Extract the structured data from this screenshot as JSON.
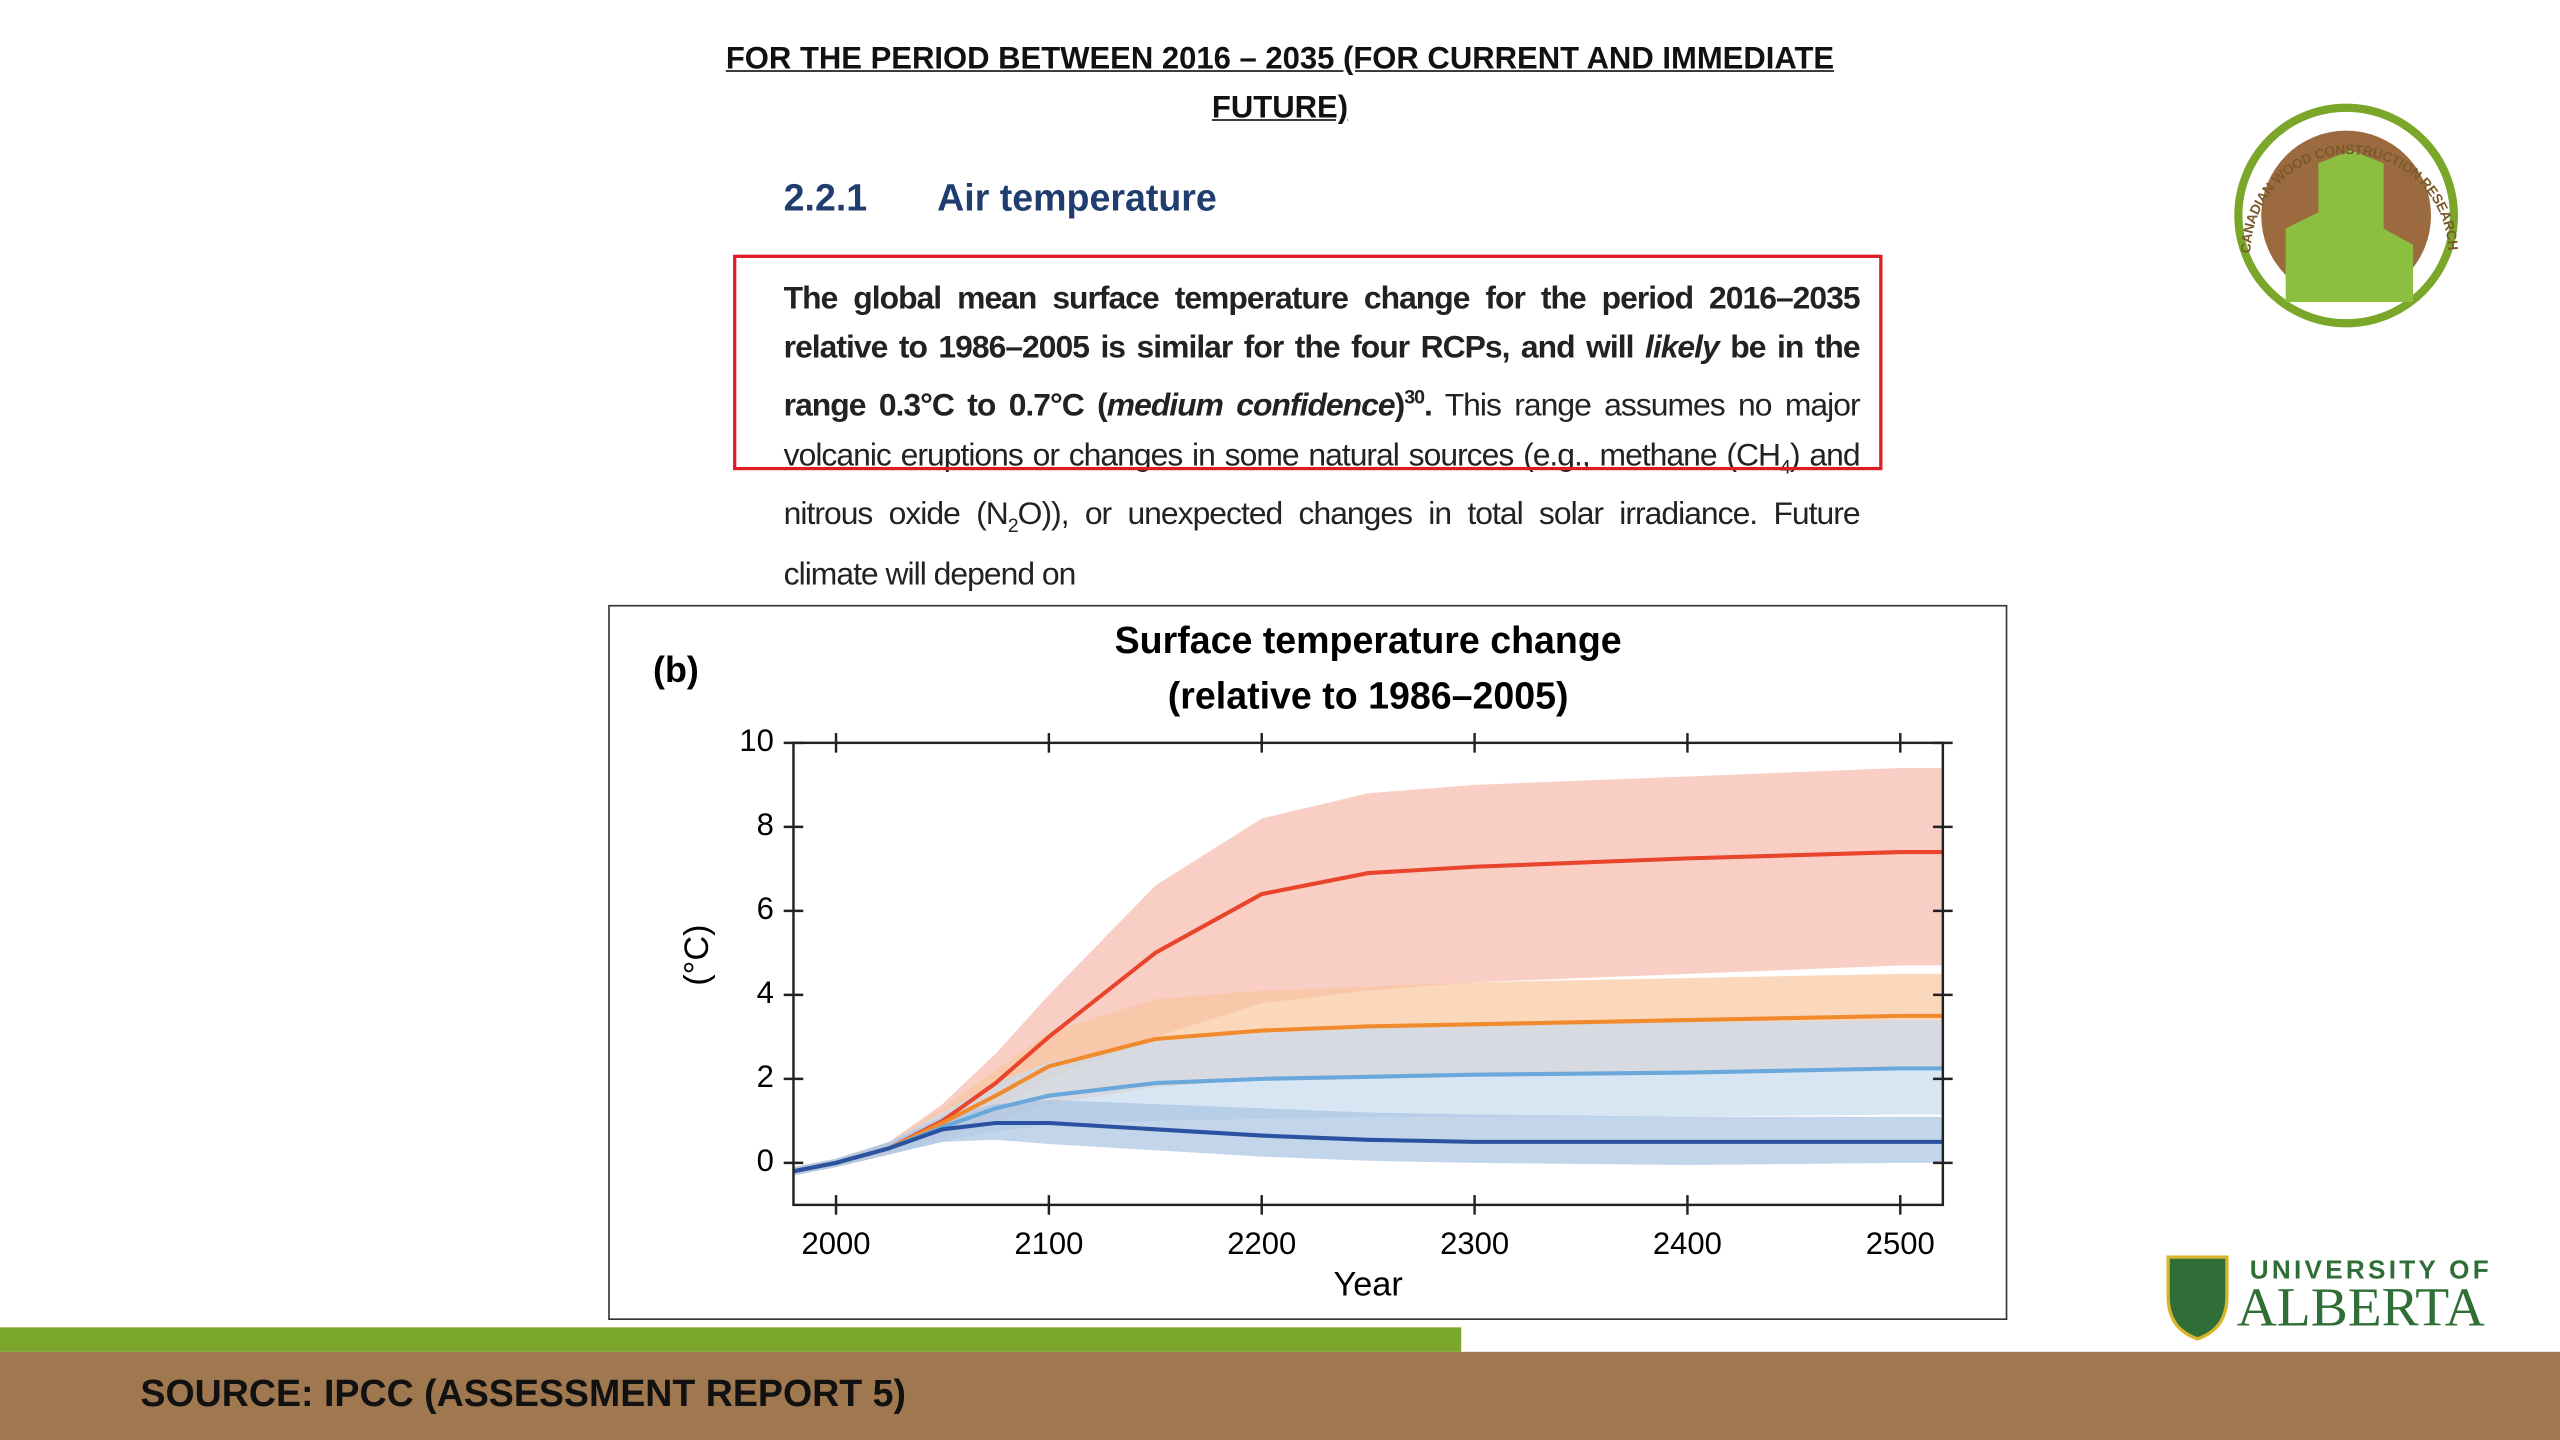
{
  "header": {
    "title_line1": "FOR THE PERIOD BETWEEN 2016 – 2035 (FOR CURRENT AND IMMEDIATE",
    "title_line2": "FUTURE)"
  },
  "section": {
    "number": "2.2.1",
    "title": "Air temperature"
  },
  "paragraph": [
    "The global mean surface temperature change for the period 2016–2035 relative to 1986–2005 is similar for the four RCPs, and will ",
    "likely",
    " be in the range 0.3°C to 0.7°C (",
    "medium confidence",
    ")",
    "30",
    ".",
    " This range assumes no major volcanic eruptions or changes in some natural sources (e.g., methane (CH",
    "4",
    ") and nitrous oxide (N",
    "2",
    "O)), or unexpected changes in total solar irradiance. Future climate will depend on"
  ],
  "logo_top": "CANADIAN WOOD CONSTRUCTION RESEARCH NETWORK",
  "logo_bottom": {
    "line1": "UNIVERSITY OF",
    "line2": "ALBERTA"
  },
  "footer": "SOURCE: IPCC (ASSESSMENT REPORT 5)",
  "chart_data": {
    "type": "line",
    "panel_label": "(b)",
    "title": "Surface temperature change",
    "subtitle": "(relative to 1986–2005)",
    "x_label": "Year",
    "y_label": "(°C)",
    "x": [
      1980,
      2000,
      2025,
      2050,
      2075,
      2100,
      2150,
      2200,
      2250,
      2300,
      2400,
      2500,
      2520
    ],
    "xlim": [
      1980,
      2520
    ],
    "xticks": [
      2000,
      2100,
      2200,
      2300,
      2400,
      2500
    ],
    "ylim": [
      -1,
      10
    ],
    "yticks": [
      0,
      2,
      4,
      6,
      8,
      10
    ],
    "series": [
      {
        "color": "#e8452c",
        "band_color": "#f7b9ab",
        "values": [
          -0.2,
          0,
          0.35,
          1.0,
          1.9,
          3.0,
          5.0,
          6.4,
          6.9,
          7.05,
          7.25,
          7.4,
          7.4
        ],
        "low": [
          -0.3,
          -0.1,
          0.2,
          0.7,
          1.3,
          2.0,
          3.0,
          3.8,
          4.1,
          4.3,
          4.5,
          4.7,
          4.7
        ],
        "high": [
          -0.1,
          0.1,
          0.5,
          1.4,
          2.6,
          4.0,
          6.6,
          8.2,
          8.8,
          9.0,
          9.2,
          9.4,
          9.4
        ]
      },
      {
        "color": "#f08a2c",
        "band_color": "#f9c6a0",
        "values": [
          -0.2,
          0,
          0.35,
          0.95,
          1.6,
          2.3,
          2.95,
          3.15,
          3.25,
          3.3,
          3.4,
          3.5,
          3.5
        ],
        "low": [
          -0.3,
          -0.1,
          0.2,
          0.6,
          1.0,
          1.4,
          1.8,
          2.0,
          2.05,
          2.1,
          2.2,
          2.3,
          2.3
        ],
        "high": [
          -0.1,
          0.1,
          0.5,
          1.3,
          2.2,
          3.1,
          3.9,
          4.1,
          4.2,
          4.3,
          4.4,
          4.5,
          4.5
        ]
      },
      {
        "color": "#6aa8dc",
        "band_color": "#c8dcef",
        "values": [
          -0.2,
          0,
          0.35,
          0.85,
          1.3,
          1.6,
          1.9,
          2.0,
          2.05,
          2.1,
          2.15,
          2.25,
          2.25
        ],
        "low": [
          -0.3,
          -0.1,
          0.2,
          0.5,
          0.75,
          0.9,
          1.0,
          1.05,
          1.1,
          1.1,
          1.1,
          1.15,
          1.15
        ],
        "high": [
          -0.1,
          0.1,
          0.5,
          1.2,
          1.9,
          2.4,
          2.9,
          3.1,
          3.2,
          3.3,
          3.35,
          3.4,
          3.4
        ]
      },
      {
        "color": "#2a52a0",
        "band_color": "#a9c3e2",
        "values": [
          -0.2,
          0,
          0.35,
          0.8,
          0.95,
          0.95,
          0.8,
          0.65,
          0.55,
          0.5,
          0.5,
          0.5,
          0.5
        ],
        "low": [
          -0.3,
          -0.1,
          0.2,
          0.5,
          0.55,
          0.45,
          0.3,
          0.15,
          0.05,
          0.0,
          -0.05,
          0.0,
          0.0
        ],
        "high": [
          -0.1,
          0.1,
          0.5,
          1.1,
          1.4,
          1.5,
          1.4,
          1.3,
          1.2,
          1.15,
          1.1,
          1.1,
          1.1
        ]
      }
    ]
  }
}
